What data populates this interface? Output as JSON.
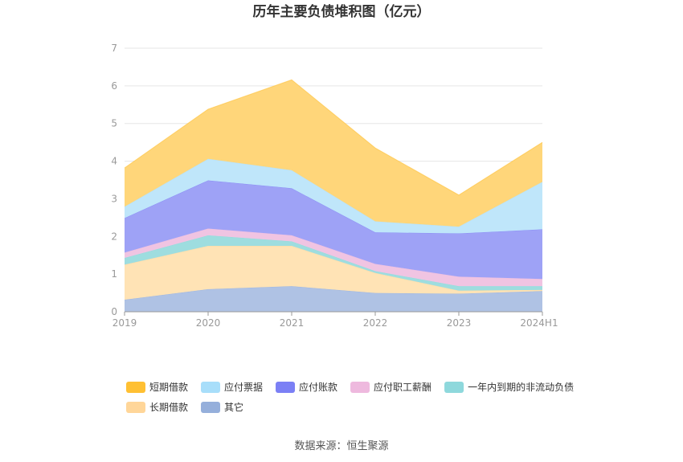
{
  "chart_data": {
    "type": "area",
    "stacked": true,
    "title": "历年主要负债堆积图（亿元）",
    "x": [
      "2019",
      "2020",
      "2021",
      "2022",
      "2023",
      "2024H1"
    ],
    "ylim": [
      0,
      7
    ],
    "yticks": [
      0,
      1,
      2,
      3,
      4,
      5,
      6,
      7
    ],
    "grid": true,
    "legend_position": "bottom",
    "series": [
      {
        "name": "其它",
        "values": [
          0.32,
          0.6,
          0.68,
          0.5,
          0.48,
          0.55
        ],
        "color": "#95AFDB",
        "fill": "#AFC2E4"
      },
      {
        "name": "长期借款",
        "values": [
          0.93,
          1.15,
          1.07,
          0.53,
          0.08,
          0.03
        ],
        "color": "#FFD699",
        "fill": "#FFE3B5"
      },
      {
        "name": "一年内到期的非流动负债",
        "values": [
          0.18,
          0.28,
          0.12,
          0.05,
          0.12,
          0.1
        ],
        "color": "#8ED8DC",
        "fill": "#9EDDDF"
      },
      {
        "name": "应付职工薪酬",
        "values": [
          0.14,
          0.18,
          0.16,
          0.19,
          0.25,
          0.19
        ],
        "color": "#EEB9DE",
        "fill": "#F0C4E2"
      },
      {
        "name": "应付账款",
        "values": [
          0.92,
          1.28,
          1.25,
          0.84,
          1.15,
          1.32
        ],
        "color": "#7B80F5",
        "fill": "#9EA2F6"
      },
      {
        "name": "应付票据",
        "values": [
          0.3,
          0.57,
          0.48,
          0.29,
          0.18,
          1.26
        ],
        "color": "#A8DEFA",
        "fill": "#BFE6FA"
      },
      {
        "name": "短期借款",
        "values": [
          1.03,
          1.32,
          2.4,
          1.95,
          0.84,
          1.05
        ],
        "color": "#FFC033",
        "fill": "#FFD67A"
      }
    ]
  },
  "legend": {
    "order": [
      "短期借款",
      "应付票据",
      "应付账款",
      "应付职工薪酬",
      "一年内到期的非流动负债",
      "长期借款",
      "其它"
    ]
  },
  "source": "数据来源：恒生聚源"
}
